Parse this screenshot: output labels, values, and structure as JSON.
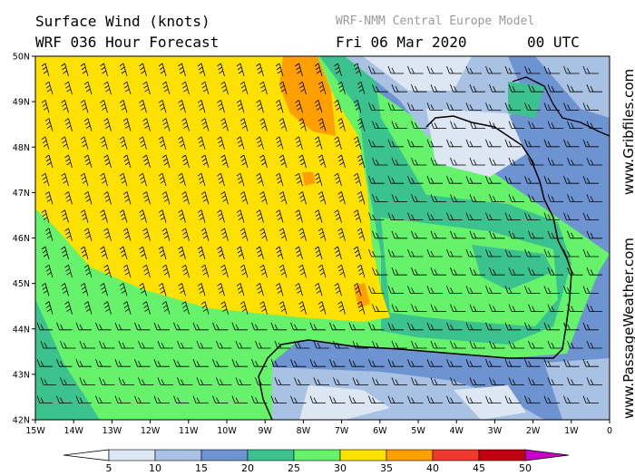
{
  "header": {
    "title": "Surface Wind (knots)",
    "subtitle": "WRF 036 Hour Forecast",
    "model": "WRF-NMM Central Europe Model",
    "date": "Fri 06 Mar 2020",
    "time": "00 UTC"
  },
  "axes": {
    "lat_labels": [
      "50N",
      "49N",
      "48N",
      "47N",
      "46N",
      "45N",
      "44N",
      "43N",
      "42N"
    ],
    "lon_labels": [
      "15W",
      "14W",
      "13W",
      "12W",
      "11W",
      "10W",
      "9W",
      "8W",
      "7W",
      "6W",
      "5W",
      "4W",
      "3W",
      "2W",
      "1W",
      "0"
    ]
  },
  "side_text": {
    "top": "www.Gribfiles.com",
    "bottom": "www.PassageWeather.com"
  },
  "colorbar": {
    "labels": [
      "5",
      "10",
      "15",
      "20",
      "25",
      "30",
      "35",
      "40",
      "45",
      "50"
    ],
    "colors": [
      "#ffffff",
      "#dde6f3",
      "#a9c1e3",
      "#6d93d1",
      "#3cc28f",
      "#66f26a",
      "#ffe100",
      "#ff9f00",
      "#ee3a2e",
      "#c00010",
      "#cc00cc"
    ]
  },
  "map_colors": {
    "very_light": "#dde6f3",
    "light_blue": "#a9c1e3",
    "blue": "#6d93d1",
    "teal": "#3cc28f",
    "green": "#66f26a",
    "yellow": "#ffe100",
    "orange": "#ff9f00",
    "land_line": "#000000"
  }
}
